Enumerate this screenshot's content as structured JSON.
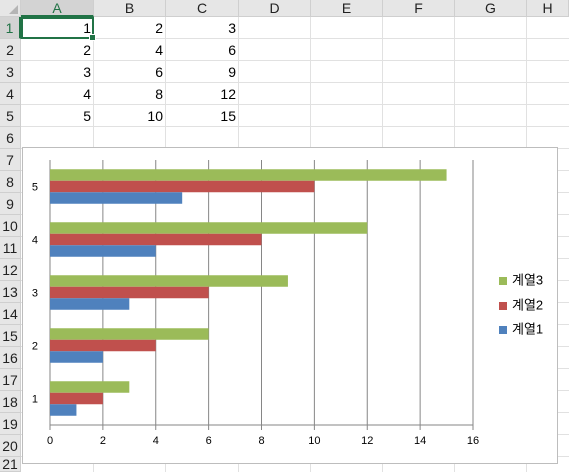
{
  "spreadsheet": {
    "columns": [
      "A",
      "B",
      "C",
      "D",
      "E",
      "F",
      "G",
      "H"
    ],
    "rows": [
      "1",
      "2",
      "3",
      "4",
      "5",
      "6",
      "7",
      "8",
      "9",
      "10",
      "11",
      "12",
      "13",
      "14",
      "15",
      "16",
      "17",
      "18",
      "19",
      "20",
      "21"
    ],
    "active_cell": "A1",
    "cells": [
      [
        "1",
        "2",
        "3"
      ],
      [
        "2",
        "4",
        "6"
      ],
      [
        "3",
        "6",
        "9"
      ],
      [
        "4",
        "8",
        "12"
      ],
      [
        "5",
        "10",
        "15"
      ]
    ]
  },
  "chart_data": {
    "type": "bar",
    "orientation": "horizontal",
    "categories": [
      "1",
      "2",
      "3",
      "4",
      "5"
    ],
    "series": [
      {
        "name": "계열1",
        "values": [
          1,
          2,
          3,
          4,
          5
        ],
        "color": "#4f81bd"
      },
      {
        "name": "계열2",
        "values": [
          2,
          4,
          6,
          8,
          10
        ],
        "color": "#c0504d"
      },
      {
        "name": "계열3",
        "values": [
          3,
          6,
          9,
          12,
          15
        ],
        "color": "#9bbb59"
      }
    ],
    "x_ticks": [
      "0",
      "2",
      "4",
      "6",
      "8",
      "10",
      "12",
      "14",
      "16"
    ],
    "xlim": [
      0,
      16
    ],
    "grid": true,
    "legend_position": "right",
    "legend_order": [
      "계열3",
      "계열2",
      "계열1"
    ],
    "title": "",
    "xlabel": "",
    "ylabel": ""
  },
  "colors": {
    "accent": "#217346",
    "header_bg": "#e6e6e6",
    "grid_line": "#e1e1e1"
  }
}
